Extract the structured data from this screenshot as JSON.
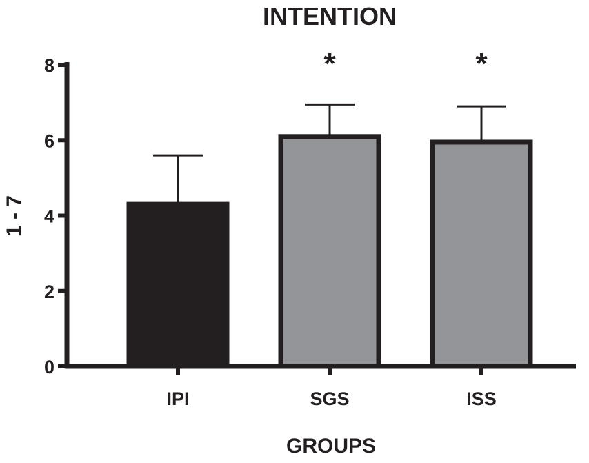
{
  "chart_data": {
    "type": "bar",
    "title": "INTENTION",
    "xlabel": "GROUPS",
    "ylabel": "1 - 7",
    "categories": [
      "IPI",
      "SGS",
      "ISS"
    ],
    "values": [
      4.3,
      6.1,
      5.95
    ],
    "error_upper": [
      5.6,
      6.95,
      6.9
    ],
    "significance": [
      "",
      "*",
      "*"
    ],
    "ylim": [
      0,
      8
    ],
    "yticks": [
      "0",
      "2",
      "4",
      "6",
      "8"
    ],
    "colors": [
      "#231f20",
      "#939598",
      "#939598"
    ],
    "axis_color": "#231f20",
    "grid": false,
    "legend": false
  }
}
